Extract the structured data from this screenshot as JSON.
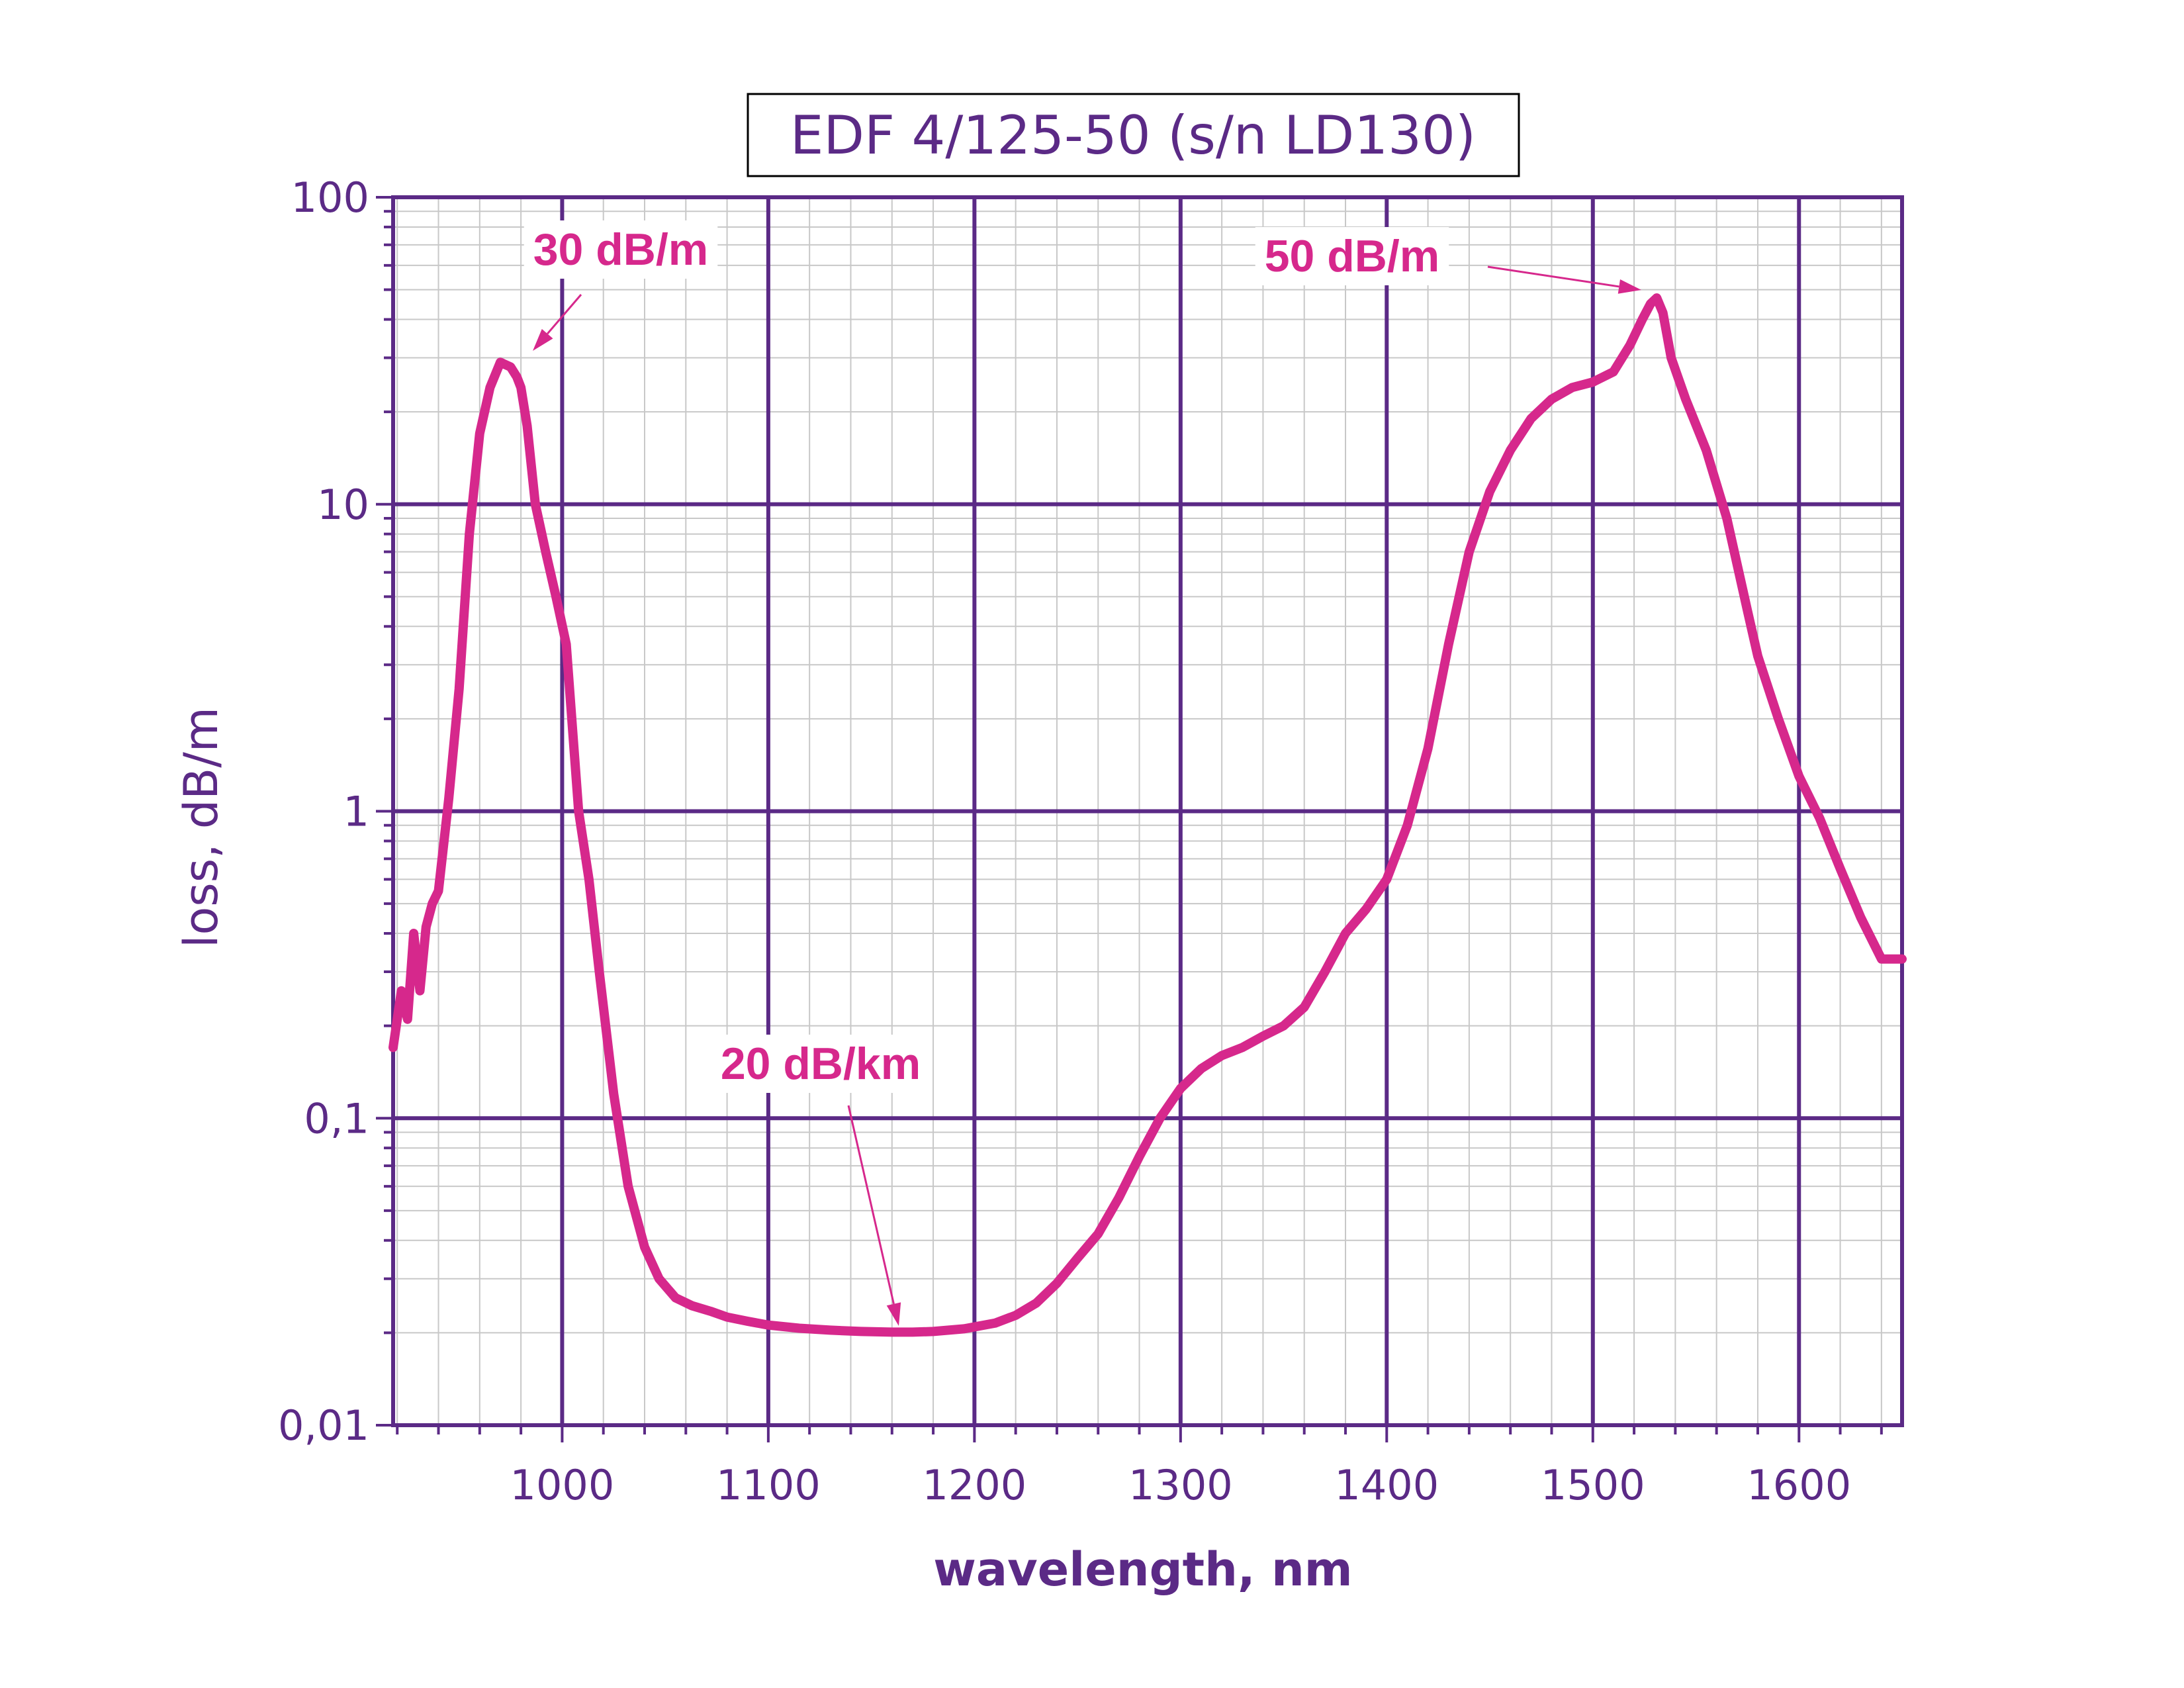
{
  "chart_data": {
    "type": "line",
    "title": "EDF 4/125-50 (s/n LD130)",
    "xlabel": "wavelength, nm",
    "ylabel": "loss, dB/m",
    "x_scale": "linear",
    "y_scale": "log",
    "xlim": [
      918,
      1650
    ],
    "ylim": [
      0.01,
      100
    ],
    "x_ticks": [
      1000,
      1100,
      1200,
      1300,
      1400,
      1500,
      1600
    ],
    "x_tick_labels": [
      "1000",
      "1100",
      "1200",
      "1300",
      "1400",
      "1500",
      "1600"
    ],
    "y_ticks": [
      0.01,
      0.1,
      1,
      10,
      100
    ],
    "y_tick_labels": [
      "0,01",
      "0,1",
      "1",
      "10",
      "100"
    ],
    "grid": true,
    "colors": {
      "curve": "#d6288c",
      "axes": "#5b2a86",
      "grid_major": "#5b2a86",
      "grid_minor": "#c8c8c8",
      "annotation": "#d6288c"
    },
    "series": [
      {
        "x": [
          918,
          922,
          925,
          928,
          931,
          934,
          937,
          940,
          945,
          950,
          955,
          960,
          965,
          970,
          975,
          978,
          980,
          983,
          987,
          992,
          997,
          1002,
          1008,
          1013,
          1018,
          1025,
          1032,
          1040,
          1047,
          1055,
          1063,
          1072,
          1080,
          1090,
          1100,
          1115,
          1130,
          1145,
          1160,
          1170,
          1180,
          1195,
          1210,
          1220,
          1230,
          1240,
          1250,
          1260,
          1270,
          1280,
          1290,
          1300,
          1310,
          1320,
          1330,
          1340,
          1350,
          1360,
          1370,
          1380,
          1390,
          1400,
          1410,
          1420,
          1430,
          1440,
          1450,
          1460,
          1470,
          1480,
          1490,
          1500,
          1510,
          1518,
          1524,
          1528,
          1531,
          1534,
          1538,
          1545,
          1555,
          1565,
          1575,
          1580,
          1590,
          1600,
          1610,
          1620,
          1630,
          1640,
          1650
        ],
        "values": [
          0.17,
          0.26,
          0.21,
          0.4,
          0.26,
          0.42,
          0.5,
          0.55,
          1.1,
          2.5,
          8,
          17,
          24,
          29,
          28,
          26,
          24,
          18,
          10,
          7,
          5,
          3.5,
          1.0,
          0.6,
          0.3,
          0.12,
          0.06,
          0.038,
          0.03,
          0.026,
          0.0245,
          0.0235,
          0.0225,
          0.0218,
          0.0212,
          0.0207,
          0.0204,
          0.0202,
          0.0201,
          0.0201,
          0.0202,
          0.0206,
          0.0215,
          0.0228,
          0.025,
          0.029,
          0.035,
          0.042,
          0.055,
          0.075,
          0.1,
          0.125,
          0.145,
          0.16,
          0.17,
          0.185,
          0.2,
          0.23,
          0.3,
          0.4,
          0.48,
          0.6,
          0.9,
          1.6,
          3.5,
          7,
          11,
          15,
          19,
          22,
          24,
          25,
          27,
          33,
          40,
          45,
          47,
          42,
          30,
          22,
          15,
          9,
          4.5,
          3.2,
          2.0,
          1.3,
          0.95,
          0.65,
          0.45,
          0.33,
          0.33
        ]
      }
    ],
    "annotations": [
      {
        "text": "30 dB/m",
        "x": 978,
        "y": 29
      },
      {
        "text": "50 dB/m",
        "x": 1531,
        "y": 47
      },
      {
        "text": "20 dB/km",
        "x": 1165,
        "y": 0.0201
      }
    ]
  }
}
